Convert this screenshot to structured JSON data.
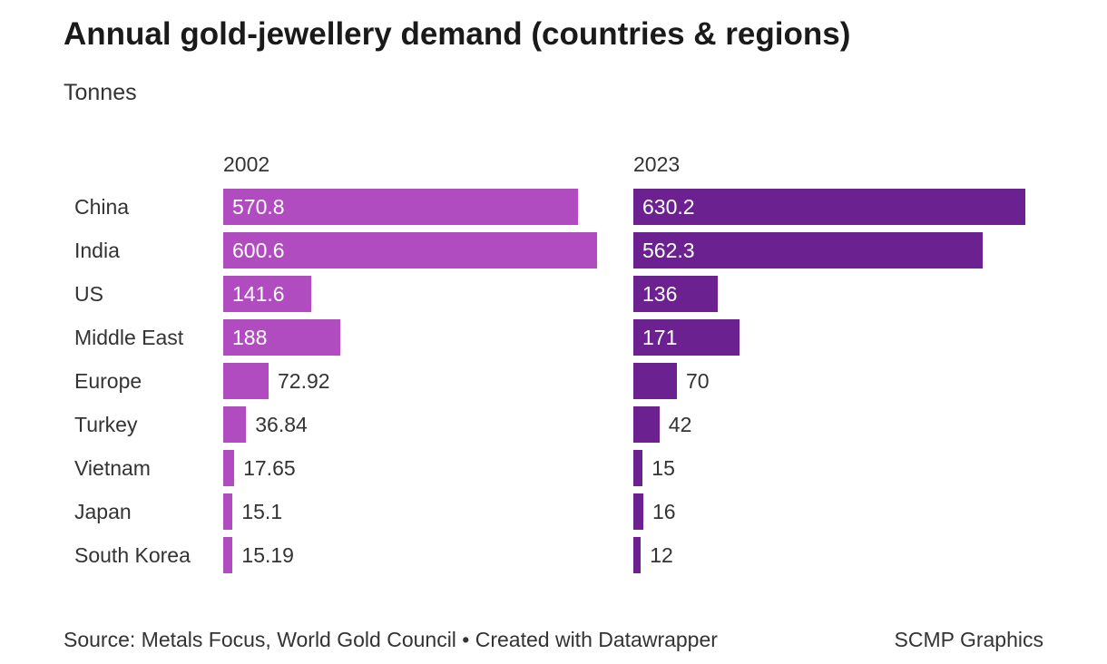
{
  "chart_data": {
    "type": "bar",
    "title": "Annual gold-jewellery demand (countries & regions)",
    "subtitle": "Tonnes",
    "categories": [
      "China",
      "India",
      "US",
      "Middle East",
      "Europe",
      "Turkey",
      "Vietnam",
      "Japan",
      "South Korea"
    ],
    "series": [
      {
        "name": "2002",
        "color": "#b04cc0",
        "values": [
          570.8,
          600.6,
          141.6,
          188,
          72.92,
          36.84,
          17.65,
          15.1,
          15.19
        ]
      },
      {
        "name": "2023",
        "color": "#6c2190",
        "values": [
          630.2,
          562.3,
          136,
          171,
          70,
          42,
          15,
          16,
          12
        ]
      }
    ],
    "xlim": [
      0,
      630.2
    ],
    "grid": false
  },
  "footer": {
    "source": "Source: Metals Focus, World Gold Council • Created with Datawrapper",
    "credit": "SCMP Graphics"
  }
}
